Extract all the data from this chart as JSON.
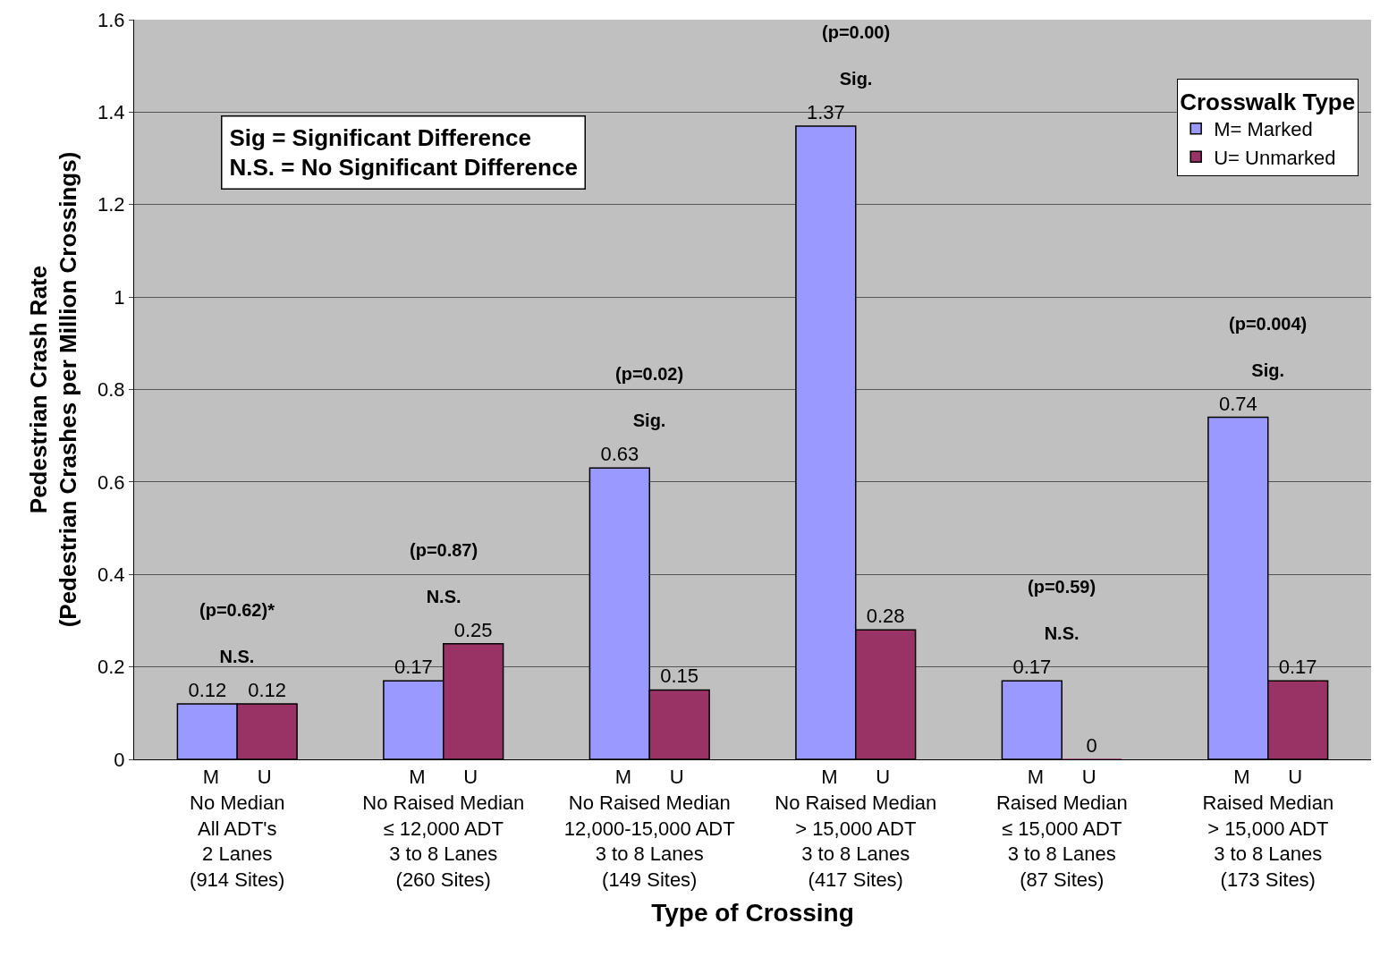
{
  "chart_data": {
    "type": "bar",
    "xlabel": "Type of Crossing",
    "ylabel": "Pedestrian Crash Rate\n(Pedestrian Crashes per Million Crossings)",
    "legend_title": "Crosswalk Type",
    "categories": [
      "M       U\nNo Median\nAll ADT's\n2 Lanes\n(914 Sites)",
      "M       U\nNo Raised Median\n≤ 12,000 ADT\n3 to 8 Lanes\n(260 Sites)",
      "M       U\nNo Raised Median\n12,000-15,000 ADT\n3 to 8 Lanes\n(149 Sites)",
      "M       U\nNo Raised Median\n> 15,000 ADT\n3 to 8 Lanes\n(417 Sites)",
      "M       U\nRaised Median\n≤ 15,000 ADT\n3 to 8 Lanes\n(87 Sites)",
      "M       U\nRaised Median\n> 15,000 ADT\n3 to 8 Lanes\n(173 Sites)"
    ],
    "series": [
      {
        "name": "M= Marked",
        "color": "#9999ff",
        "values": [
          0.12,
          0.17,
          0.63,
          1.37,
          0.17,
          0.74
        ]
      },
      {
        "name": "U= Unmarked",
        "color": "#993366",
        "values": [
          0.12,
          0.25,
          0.15,
          0.28,
          0,
          0.17
        ]
      }
    ],
    "ylim": [
      0,
      1.6
    ],
    "yticks": [
      0,
      0.2,
      0.4,
      0.6,
      0.8,
      1,
      1.2,
      1.4,
      1.6
    ],
    "grid": "y",
    "legend": "top right",
    "data_labels": true,
    "annotations": [
      "Sig = Significant Difference\nN.S. = No Significant Difference",
      "(p=0.62)*\n\nN.S.",
      "(p=0.87)\n\nN.S.",
      "(p=0.02)\n\nSig.",
      "(p=0.00)\n\nSig.",
      "(p=0.59)\n\nN.S.",
      "(p=0.004)\n\nSig."
    ]
  }
}
